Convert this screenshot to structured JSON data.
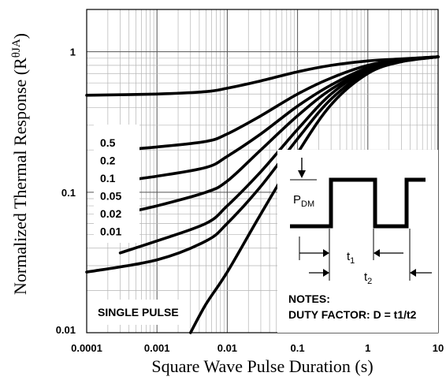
{
  "chart_data": {
    "type": "line",
    "title": "",
    "xlabel": "Square Wave Pulse Duration (s)",
    "ylabel": "Normalized Thermal Response (RθJA)",
    "ylabel_main": "Normalized Thermal Response (R",
    "ylabel_sup": "θJA",
    "ylabel_close": ")",
    "x_scale": "log",
    "y_scale": "log",
    "xlim": [
      0.0001,
      10
    ],
    "ylim": [
      0.01,
      2
    ],
    "grid": true,
    "x_ticks": [
      "0.0001",
      "0.001",
      "0.01",
      "0.1",
      "1",
      "10"
    ],
    "y_ticks": [
      "0.01",
      "0.1",
      "1"
    ],
    "series": [
      {
        "name": "0.5",
        "x": [
          0.0001,
          0.001,
          0.005,
          0.01,
          0.03,
          0.1,
          0.3,
          1,
          3,
          10
        ],
        "y": [
          0.49,
          0.5,
          0.52,
          0.55,
          0.62,
          0.72,
          0.8,
          0.86,
          0.89,
          0.92
        ]
      },
      {
        "name": "0.2",
        "x": [
          0.0003,
          0.001,
          0.005,
          0.01,
          0.03,
          0.1,
          0.3,
          1,
          3,
          10
        ],
        "y": [
          0.2,
          0.21,
          0.23,
          0.26,
          0.35,
          0.5,
          0.65,
          0.8,
          0.88,
          0.92
        ]
      },
      {
        "name": "0.1",
        "x": [
          0.0003,
          0.001,
          0.005,
          0.01,
          0.03,
          0.1,
          0.3,
          1,
          3,
          10
        ],
        "y": [
          0.12,
          0.13,
          0.15,
          0.18,
          0.26,
          0.41,
          0.58,
          0.77,
          0.87,
          0.92
        ]
      },
      {
        "name": "0.05",
        "x": [
          0.0003,
          0.001,
          0.005,
          0.01,
          0.03,
          0.1,
          0.3,
          1,
          3,
          10
        ],
        "y": [
          0.07,
          0.08,
          0.1,
          0.12,
          0.2,
          0.35,
          0.54,
          0.75,
          0.86,
          0.92
        ]
      },
      {
        "name": "0.02",
        "x": [
          0.0003,
          0.001,
          0.005,
          0.01,
          0.03,
          0.1,
          0.3,
          1,
          3,
          10
        ],
        "y": [
          0.037,
          0.045,
          0.06,
          0.08,
          0.14,
          0.28,
          0.5,
          0.74,
          0.86,
          0.92
        ]
      },
      {
        "name": "0.01",
        "x": [
          0.0001,
          0.001,
          0.005,
          0.01,
          0.03,
          0.1,
          0.3,
          1,
          3,
          10
        ],
        "y": [
          0.027,
          0.033,
          0.045,
          0.06,
          0.11,
          0.24,
          0.46,
          0.72,
          0.85,
          0.92
        ]
      },
      {
        "name": "SINGLE PULSE",
        "x": [
          0.003,
          0.005,
          0.01,
          0.03,
          0.1,
          0.3,
          1,
          3,
          10
        ],
        "y": [
          0.01,
          0.016,
          0.027,
          0.07,
          0.19,
          0.42,
          0.7,
          0.85,
          0.92
        ]
      }
    ],
    "legend": [
      "0.5",
      "0.2",
      "0.1",
      "0.05",
      "0.02",
      "0.01"
    ],
    "single_pulse_label": "SINGLE PULSE",
    "inset": {
      "pdm_main": "P",
      "pdm_sub": "DM",
      "t1_main": "t",
      "t1_sub": "1",
      "t2_main": "t",
      "t2_sub": "2",
      "notes": "NOTES:",
      "duty_factor": "DUTY FACTOR: D = t1/t2"
    }
  }
}
